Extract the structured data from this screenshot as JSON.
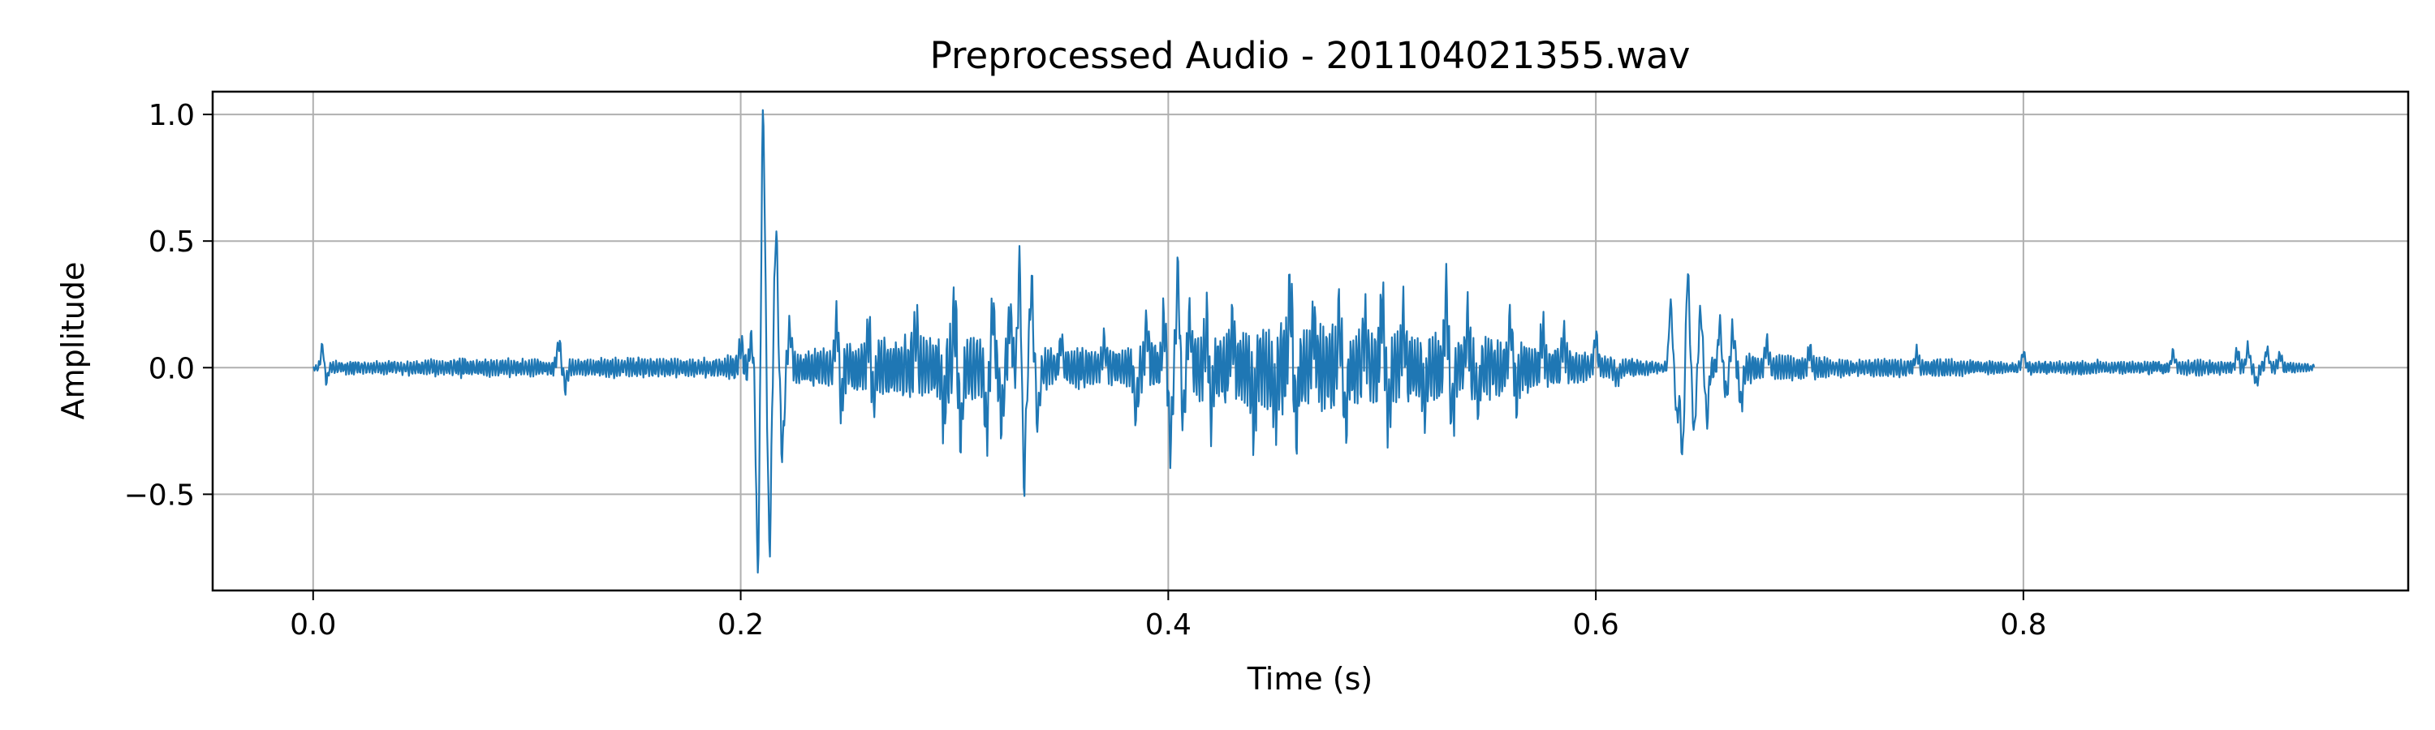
{
  "chart_data": {
    "type": "line",
    "title": "Preprocessed Audio - 201104021355.wav",
    "xlabel": "Time (s)",
    "ylabel": "Amplitude",
    "xlim": [
      -0.047,
      0.98
    ],
    "ylim": [
      -0.88,
      1.09
    ],
    "x_ticks": [
      0.0,
      0.2,
      0.4,
      0.6,
      0.8
    ],
    "x_tick_labels": [
      "0.0",
      "0.2",
      "0.4",
      "0.6",
      "0.8"
    ],
    "y_ticks": [
      -0.5,
      0.0,
      0.5,
      1.0
    ],
    "y_tick_labels": [
      "−0.5",
      "0.0",
      "0.5",
      "1.0"
    ],
    "grid": true,
    "line_color": "#1f77b4",
    "grid_color": "#b0b0b0",
    "series": [
      {
        "duration_s": 0.936,
        "peaks": [
          {
            "t": 0.0045,
            "v": 0.09
          },
          {
            "t": 0.006,
            "v": -0.06
          },
          {
            "t": 0.115,
            "v": 0.1
          },
          {
            "t": 0.118,
            "v": -0.07
          },
          {
            "t": 0.2,
            "v": 0.1
          },
          {
            "t": 0.205,
            "v": 0.1
          },
          {
            "t": 0.208,
            "v": -0.78
          },
          {
            "t": 0.2105,
            "v": 1.0
          },
          {
            "t": 0.2135,
            "v": -0.7
          },
          {
            "t": 0.2165,
            "v": 0.54
          },
          {
            "t": 0.2195,
            "v": -0.34
          },
          {
            "t": 0.223,
            "v": 0.16
          },
          {
            "t": 0.245,
            "v": 0.19
          },
          {
            "t": 0.247,
            "v": -0.15
          },
          {
            "t": 0.26,
            "v": 0.14
          },
          {
            "t": 0.262,
            "v": -0.13
          },
          {
            "t": 0.282,
            "v": 0.15
          },
          {
            "t": 0.295,
            "v": -0.18
          },
          {
            "t": 0.3,
            "v": 0.21
          },
          {
            "t": 0.303,
            "v": -0.26
          },
          {
            "t": 0.315,
            "v": -0.24
          },
          {
            "t": 0.318,
            "v": 0.22
          },
          {
            "t": 0.322,
            "v": -0.2
          },
          {
            "t": 0.326,
            "v": 0.2
          },
          {
            "t": 0.3305,
            "v": 0.4
          },
          {
            "t": 0.3325,
            "v": -0.47
          },
          {
            "t": 0.336,
            "v": 0.32
          },
          {
            "t": 0.339,
            "v": -0.2
          },
          {
            "t": 0.35,
            "v": 0.1
          },
          {
            "t": 0.37,
            "v": 0.1
          },
          {
            "t": 0.385,
            "v": -0.17
          },
          {
            "t": 0.39,
            "v": 0.15
          },
          {
            "t": 0.398,
            "v": 0.19
          },
          {
            "t": 0.401,
            "v": -0.31
          },
          {
            "t": 0.4045,
            "v": 0.36
          },
          {
            "t": 0.407,
            "v": -0.2
          },
          {
            "t": 0.41,
            "v": 0.2
          },
          {
            "t": 0.418,
            "v": 0.18
          },
          {
            "t": 0.42,
            "v": -0.18
          },
          {
            "t": 0.43,
            "v": 0.15
          },
          {
            "t": 0.44,
            "v": -0.2
          },
          {
            "t": 0.45,
            "v": -0.15
          },
          {
            "t": 0.457,
            "v": 0.3
          },
          {
            "t": 0.46,
            "v": -0.22
          },
          {
            "t": 0.468,
            "v": 0.15
          },
          {
            "t": 0.48,
            "v": 0.2
          },
          {
            "t": 0.483,
            "v": -0.2
          },
          {
            "t": 0.492,
            "v": 0.15
          },
          {
            "t": 0.5,
            "v": 0.25
          },
          {
            "t": 0.503,
            "v": -0.2
          },
          {
            "t": 0.51,
            "v": 0.18
          },
          {
            "t": 0.52,
            "v": -0.14
          },
          {
            "t": 0.53,
            "v": 0.28
          },
          {
            "t": 0.533,
            "v": -0.2
          },
          {
            "t": 0.54,
            "v": 0.18
          },
          {
            "t": 0.545,
            "v": -0.12
          },
          {
            "t": 0.56,
            "v": 0.17
          },
          {
            "t": 0.563,
            "v": -0.1
          },
          {
            "t": 0.575,
            "v": 0.14
          },
          {
            "t": 0.585,
            "v": 0.12
          },
          {
            "t": 0.6,
            "v": 0.12
          },
          {
            "t": 0.61,
            "v": -0.05
          },
          {
            "t": 0.635,
            "v": 0.25
          },
          {
            "t": 0.638,
            "v": -0.2
          },
          {
            "t": 0.6405,
            "v": -0.34
          },
          {
            "t": 0.643,
            "v": 0.37
          },
          {
            "t": 0.646,
            "v": -0.25
          },
          {
            "t": 0.649,
            "v": 0.22
          },
          {
            "t": 0.652,
            "v": -0.2
          },
          {
            "t": 0.658,
            "v": 0.17
          },
          {
            "t": 0.661,
            "v": -0.1
          },
          {
            "t": 0.664,
            "v": 0.15
          },
          {
            "t": 0.668,
            "v": -0.15
          },
          {
            "t": 0.68,
            "v": 0.1
          },
          {
            "t": 0.7,
            "v": 0.07
          },
          {
            "t": 0.75,
            "v": 0.06
          },
          {
            "t": 0.8,
            "v": 0.06
          },
          {
            "t": 0.87,
            "v": 0.06
          },
          {
            "t": 0.9,
            "v": 0.06
          },
          {
            "t": 0.905,
            "v": 0.08
          },
          {
            "t": 0.909,
            "v": -0.06
          },
          {
            "t": 0.914,
            "v": 0.07
          },
          {
            "t": 0.92,
            "v": 0.05
          }
        ],
        "envelope": [
          {
            "t": 0.0,
            "a": 0.02
          },
          {
            "t": 0.05,
            "a": 0.025
          },
          {
            "t": 0.11,
            "a": 0.03
          },
          {
            "t": 0.19,
            "a": 0.03
          },
          {
            "t": 0.2,
            "a": 0.05
          },
          {
            "t": 0.205,
            "a": 0.05
          },
          {
            "t": 0.225,
            "a": 0.06
          },
          {
            "t": 0.24,
            "a": 0.07
          },
          {
            "t": 0.27,
            "a": 0.1
          },
          {
            "t": 0.3,
            "a": 0.13
          },
          {
            "t": 0.35,
            "a": 0.06
          },
          {
            "t": 0.38,
            "a": 0.07
          },
          {
            "t": 0.4,
            "a": 0.1
          },
          {
            "t": 0.45,
            "a": 0.14
          },
          {
            "t": 0.5,
            "a": 0.13
          },
          {
            "t": 0.56,
            "a": 0.1
          },
          {
            "t": 0.6,
            "a": 0.04
          },
          {
            "t": 0.63,
            "a": 0.02
          },
          {
            "t": 0.67,
            "a": 0.05
          },
          {
            "t": 0.7,
            "a": 0.035
          },
          {
            "t": 0.8,
            "a": 0.02
          },
          {
            "t": 0.9,
            "a": 0.025
          },
          {
            "t": 0.936,
            "a": 0.015
          }
        ]
      }
    ]
  }
}
